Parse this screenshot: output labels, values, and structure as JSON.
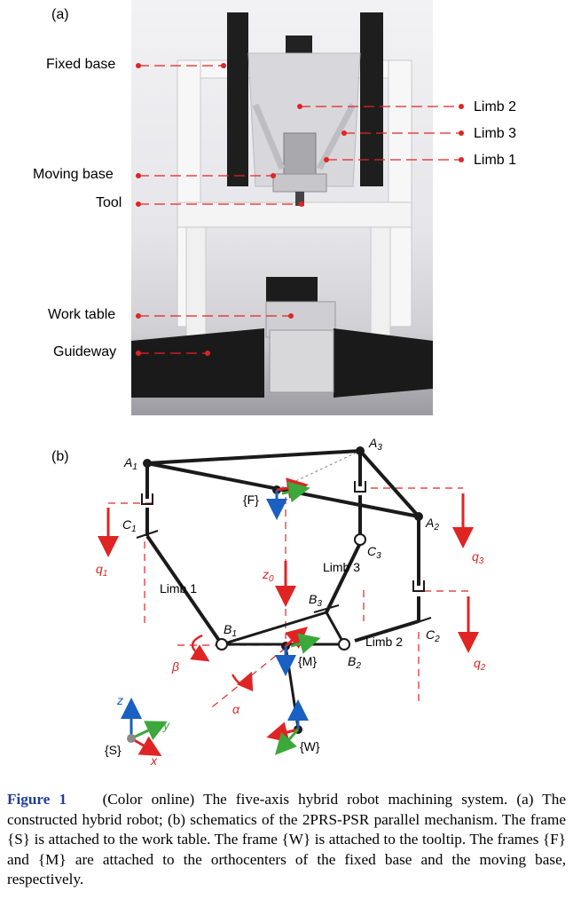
{
  "panels": {
    "a": "(a)",
    "b": "(b)"
  },
  "photo_labels": {
    "fixed_base": "Fixed base",
    "moving_base": "Moving base",
    "tool": "Tool",
    "work_table": "Work table",
    "guideway": "Guideway",
    "limb2": "Limb 2",
    "limb3": "Limb 3",
    "limb1": "Limb 1"
  },
  "schematic_labels": {
    "A1": "A",
    "A1_sub": "1",
    "A2": "A",
    "A2_sub": "2",
    "A3": "A",
    "A3_sub": "3",
    "B1": "B",
    "B1_sub": "1",
    "B2": "B",
    "B2_sub": "2",
    "B3": "B",
    "B3_sub": "3",
    "C1": "C",
    "C1_sub": "1",
    "C2": "C",
    "C2_sub": "2",
    "C3": "C",
    "C3_sub": "3",
    "F": "{F}",
    "M": "{M}",
    "W": "{W}",
    "S": "{S}",
    "q1": "q",
    "q1_sub": "1",
    "q2": "q",
    "q2_sub": "2",
    "q3": "q",
    "q3_sub": "3",
    "z0": "z",
    "z0_sub": "0",
    "limb1": "Limb 1",
    "limb2": "Limb 2",
    "limb3": "Limb 3",
    "beta": "β",
    "alpha": "α",
    "axis_z": "z",
    "axis_y": "y",
    "axis_x": "x"
  },
  "caption": {
    "figure": "Figure 1",
    "text": "(Color online) The five-axis hybrid robot machining system. (a) The constructed hybrid robot; (b) schematics of the 2PRS-PSR parallel mechanism. The frame {S} is attached to the work table. The frame {W} is attached to the tooltip. The frames {F} and {M} are attached to the orthocenters of the fixed base and the moving base, respectively."
  },
  "colors": {
    "red": "#e02424",
    "blue": "#1a5fc2",
    "green": "#3aa83a",
    "figure_label": "#1f3f9a"
  }
}
